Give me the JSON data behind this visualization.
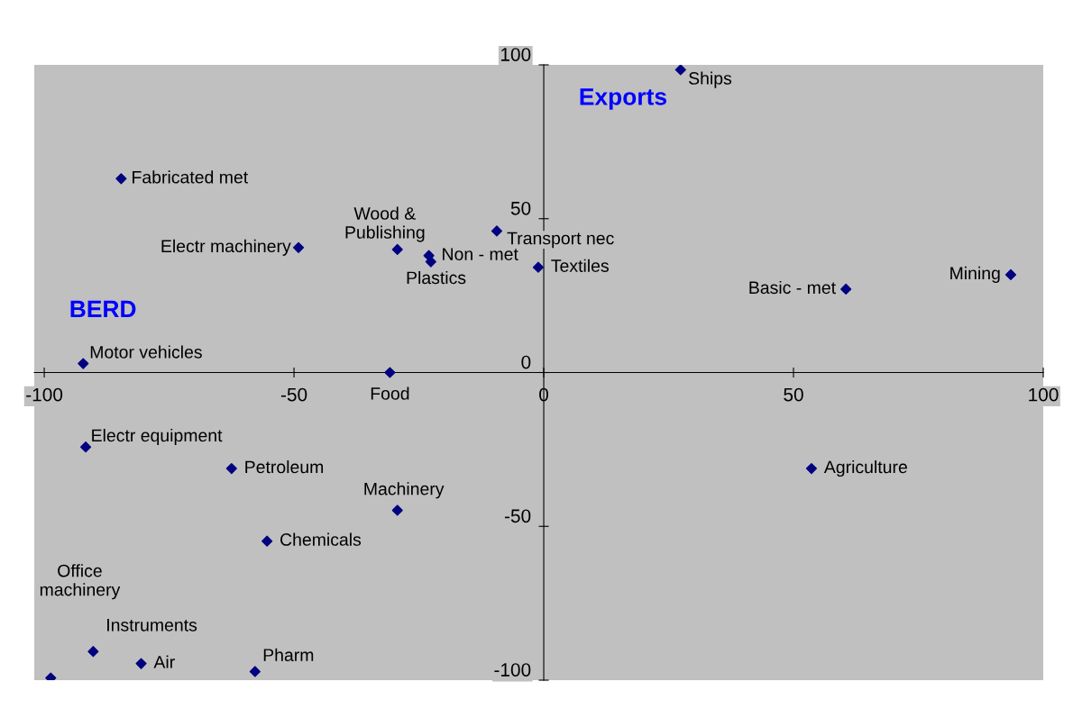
{
  "chart_data": {
    "type": "scatter",
    "xlabel": "BERD",
    "ylabel": "Exports",
    "x": [
      27.4,
      -84.6,
      -49.1,
      -29.3,
      -23,
      -22.6,
      -9.4,
      -1.1,
      60.5,
      93.5,
      -92.2,
      -30.8,
      -91.7,
      -62.5,
      -29.3,
      -55.4,
      53.6,
      -90.2,
      -80.6,
      -57.8,
      -98.7
    ],
    "series": [
      {
        "color": "#000080",
        "values": [
          98.4,
          63,
          40.6,
          40,
          38,
          36,
          46,
          34.2,
          27.1,
          31.8,
          2.9,
          0,
          -24.2,
          -31.2,
          -44.8,
          -54.8,
          -31.2,
          -90.7,
          -94.6,
          -97.2,
          -99.3
        ]
      }
    ],
    "annotations": [
      {
        "text": "Ships",
        "x": 27.4,
        "y": 98.4
      },
      {
        "text": "Fabricated met",
        "x": -84.6,
        "y": 63
      },
      {
        "text": "Electr machinery",
        "x": -49.1,
        "y": 40.6
      },
      {
        "text": "Wood &\nPublishing",
        "x": -29.3,
        "y": 40
      },
      {
        "text": "Non - met",
        "x": -23,
        "y": 38
      },
      {
        "text": "Plastics",
        "x": -22.6,
        "y": 36
      },
      {
        "text": "Transport nec",
        "x": -9.4,
        "y": 46
      },
      {
        "text": "Textiles",
        "x": -1.1,
        "y": 34.2
      },
      {
        "text": "Basic - met",
        "x": 60.5,
        "y": 27.1
      },
      {
        "text": "Mining",
        "x": 93.5,
        "y": 31.8
      },
      {
        "text": "Motor vehicles",
        "x": -92.2,
        "y": 2.9
      },
      {
        "text": "Food",
        "x": -30.8,
        "y": 0
      },
      {
        "text": "Electr equipment",
        "x": -91.7,
        "y": -24.2
      },
      {
        "text": "Petroleum",
        "x": -62.5,
        "y": -31.2
      },
      {
        "text": "Machinery",
        "x": -29.3,
        "y": -44.8
      },
      {
        "text": "Chemicals",
        "x": -55.4,
        "y": -54.8
      },
      {
        "text": "Agriculture",
        "x": 53.6,
        "y": -31.2
      },
      {
        "text": "Instruments",
        "x": -90.2,
        "y": -90.7
      },
      {
        "text": "Air",
        "x": -80.6,
        "y": -94.6
      },
      {
        "text": "Pharm",
        "x": -57.8,
        "y": -97.2
      },
      "Office\nmachinery"
    ],
    "xlim": [
      -102,
      100
    ],
    "ylim": [
      -100,
      100
    ],
    "xticks": [
      -100,
      -50,
      0,
      50,
      100
    ],
    "yticks": [
      -100,
      -50,
      0,
      50,
      100
    ],
    "marker": "diamond",
    "grid": false,
    "legend": false
  }
}
